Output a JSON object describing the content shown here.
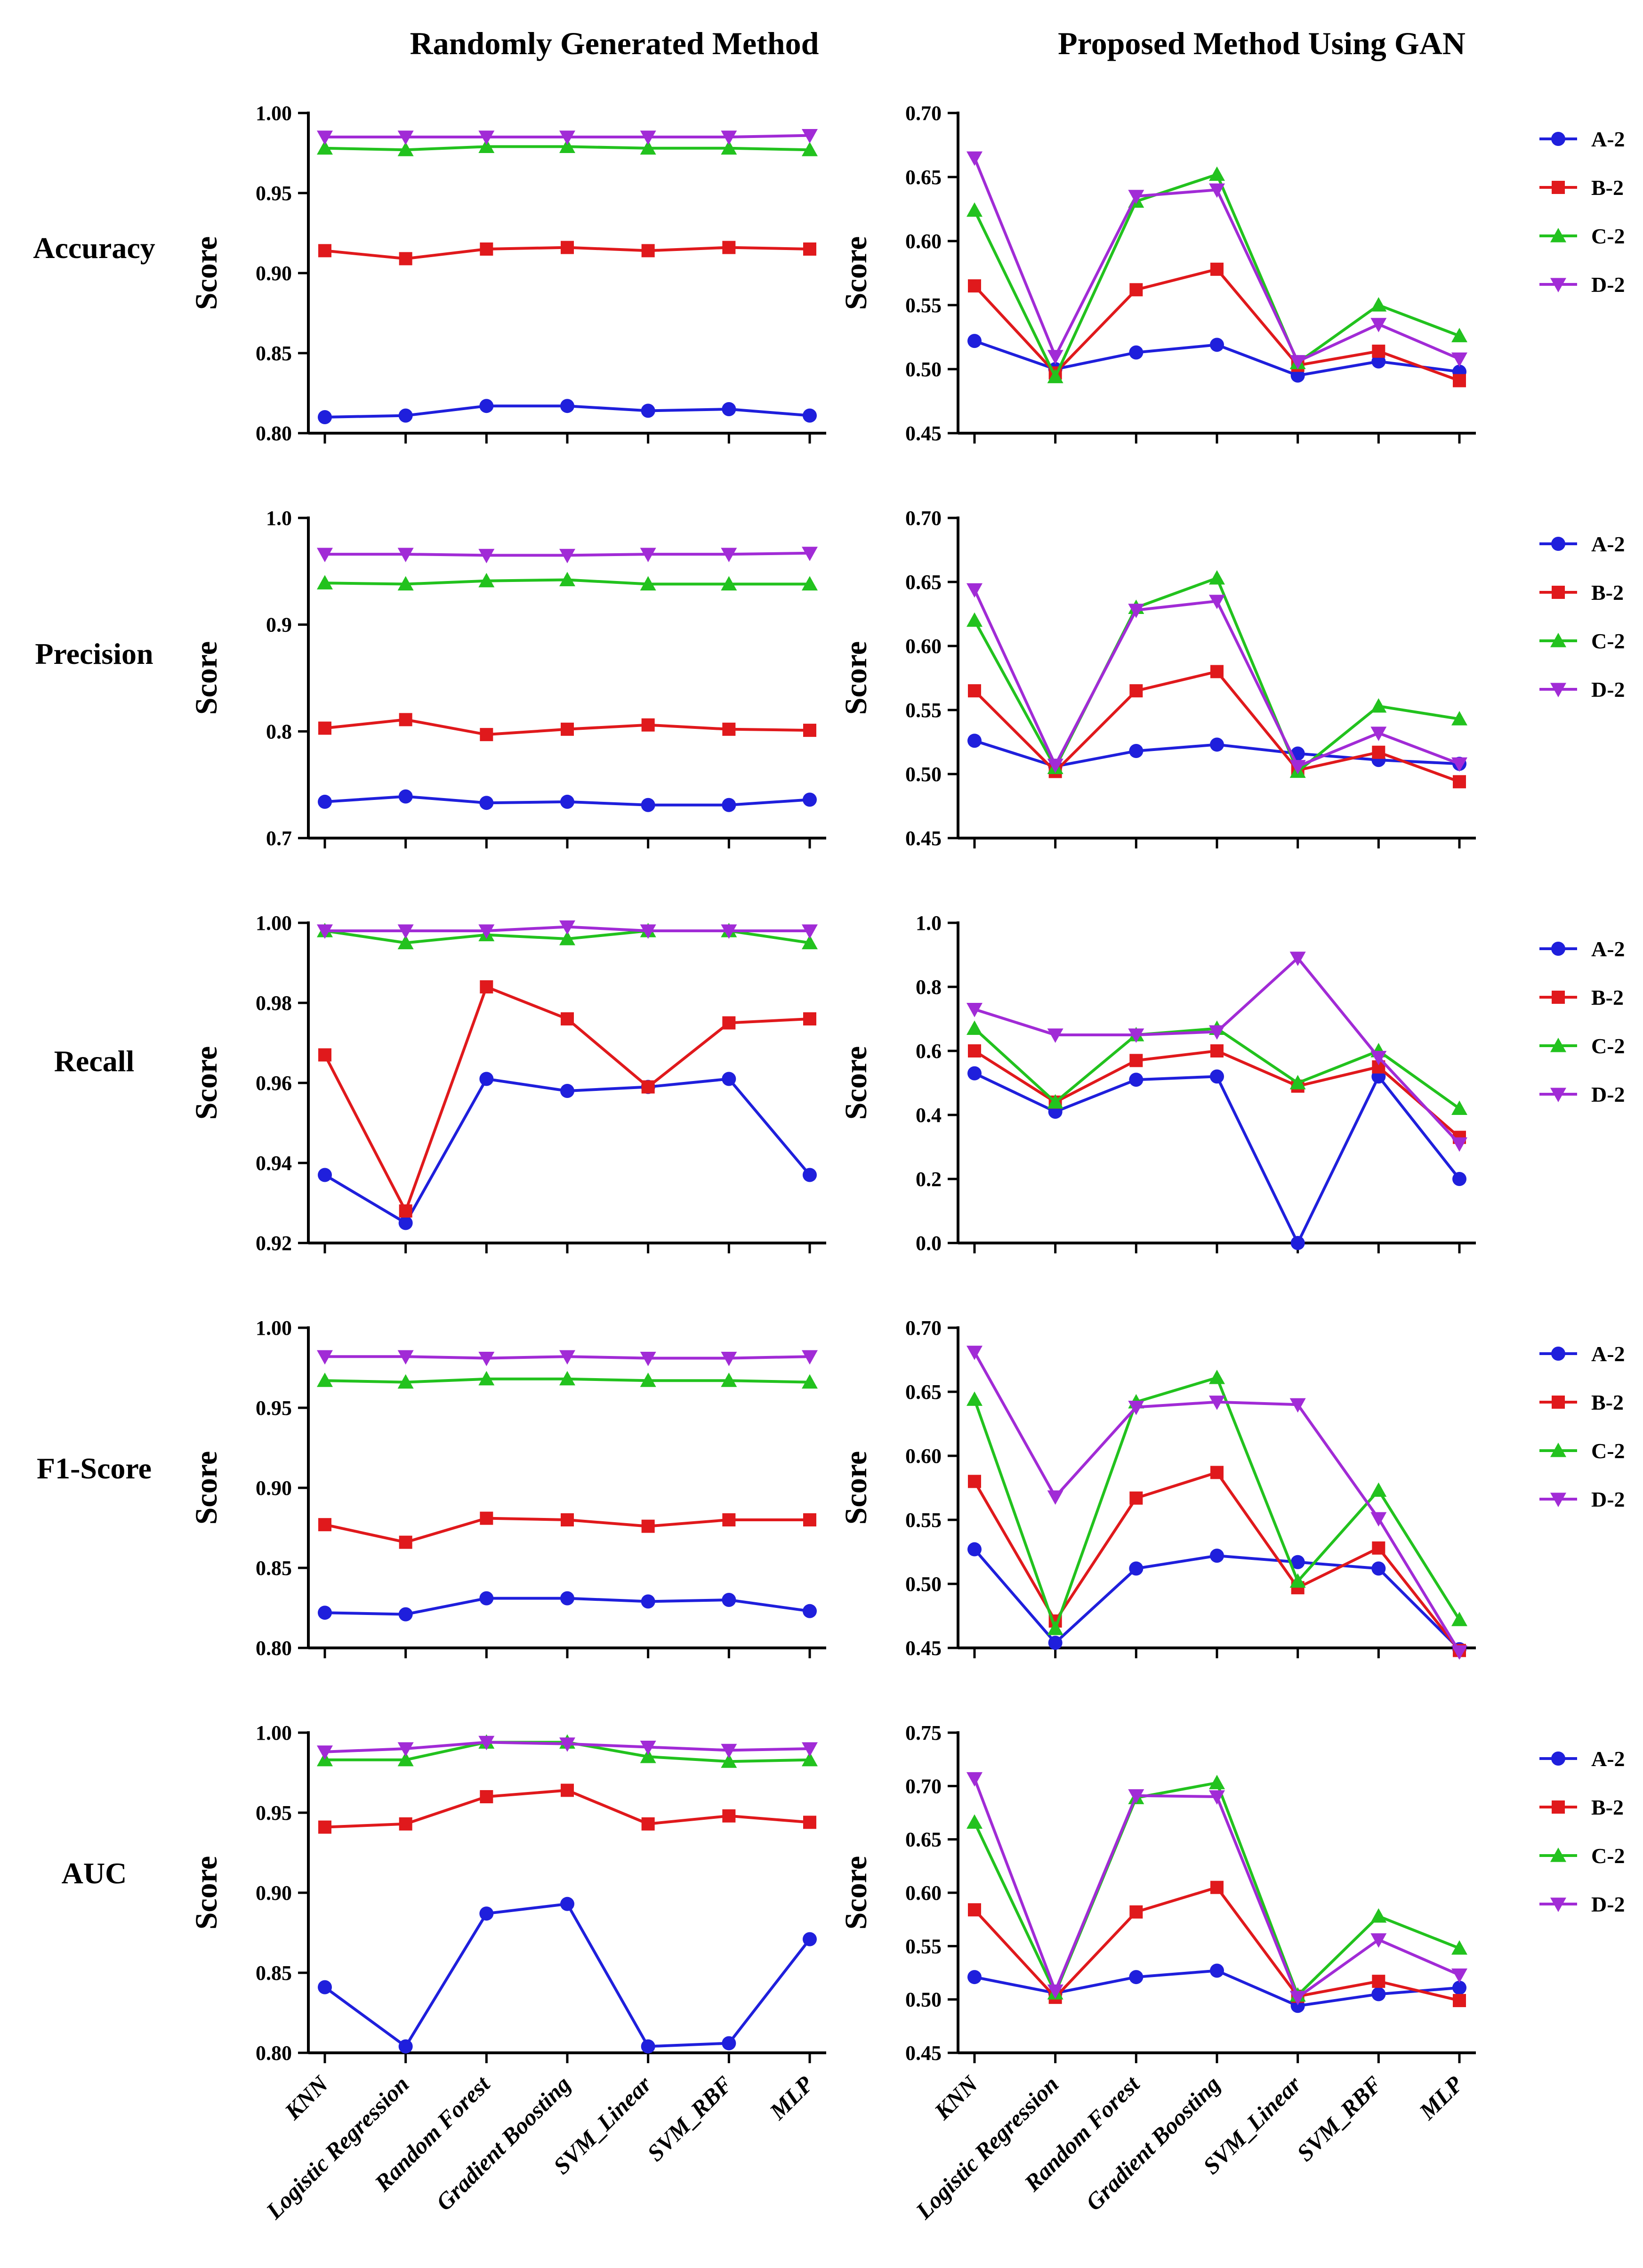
{
  "column_titles": [
    "Randomly Generated Method",
    "Proposed Method Using GAN"
  ],
  "row_titles": [
    "Accuracy",
    "Precision",
    "Recall",
    "F1-Score",
    "AUC"
  ],
  "series_styles": [
    {
      "name": "A-2",
      "color": "#1f1fdc",
      "marker": "circle"
    },
    {
      "name": "B-2",
      "color": "#e0191c",
      "marker": "square"
    },
    {
      "name": "C-2",
      "color": "#22c21e",
      "marker": "triangle-up"
    },
    {
      "name": "D-2",
      "color": "#a12bd6",
      "marker": "triangle-down"
    }
  ],
  "chart_data": [
    {
      "type": "line",
      "metric": "Accuracy",
      "method": "Randomly Generated Method",
      "ylabel": "Score",
      "categories": [
        "KNN",
        "Logistic Regression",
        "Random Forest",
        "Gradient Boosting",
        "SVM_Linear",
        "SVM_RBF",
        "MLP"
      ],
      "ylim": [
        0.8,
        1.0
      ],
      "yticks": [
        "0.80",
        "0.85",
        "0.90",
        "0.95",
        "1.00"
      ],
      "legend": false,
      "series": [
        {
          "name": "A-2",
          "values": [
            0.81,
            0.811,
            0.817,
            0.817,
            0.814,
            0.815,
            0.811
          ]
        },
        {
          "name": "B-2",
          "values": [
            0.914,
            0.909,
            0.915,
            0.916,
            0.914,
            0.916,
            0.915
          ]
        },
        {
          "name": "C-2",
          "values": [
            0.978,
            0.977,
            0.979,
            0.979,
            0.978,
            0.978,
            0.977
          ]
        },
        {
          "name": "D-2",
          "values": [
            0.985,
            0.985,
            0.985,
            0.985,
            0.985,
            0.985,
            0.986
          ]
        }
      ]
    },
    {
      "type": "line",
      "metric": "Accuracy",
      "method": "Proposed Method Using GAN",
      "ylabel": "Score",
      "categories": [
        "KNN",
        "Logistic Regression",
        "Random Forest",
        "Gradient Boosting",
        "SVM_Linear",
        "SVM_RBF",
        "MLP"
      ],
      "ylim": [
        0.45,
        0.7
      ],
      "yticks": [
        "0.45",
        "0.50",
        "0.55",
        "0.60",
        "0.65",
        "0.70"
      ],
      "legend": true,
      "series": [
        {
          "name": "A-2",
          "values": [
            0.522,
            0.5,
            0.513,
            0.519,
            0.495,
            0.506,
            0.498
          ]
        },
        {
          "name": "B-2",
          "values": [
            0.565,
            0.497,
            0.562,
            0.578,
            0.503,
            0.514,
            0.491
          ]
        },
        {
          "name": "C-2",
          "values": [
            0.624,
            0.494,
            0.631,
            0.652,
            0.505,
            0.55,
            0.526
          ]
        },
        {
          "name": "D-2",
          "values": [
            0.665,
            0.51,
            0.635,
            0.64,
            0.506,
            0.535,
            0.508
          ]
        }
      ]
    },
    {
      "type": "line",
      "metric": "Precision",
      "method": "Randomly Generated Method",
      "ylabel": "Score",
      "categories": [
        "KNN",
        "Logistic Regression",
        "Random Forest",
        "Gradient Boosting",
        "SVM_Linear",
        "SVM_RBF",
        "MLP"
      ],
      "ylim": [
        0.7,
        1.0
      ],
      "yticks": [
        "0.7",
        "0.8",
        "0.9",
        "1.0"
      ],
      "legend": false,
      "series": [
        {
          "name": "A-2",
          "values": [
            0.734,
            0.739,
            0.733,
            0.734,
            0.731,
            0.731,
            0.736
          ]
        },
        {
          "name": "B-2",
          "values": [
            0.803,
            0.811,
            0.797,
            0.802,
            0.806,
            0.802,
            0.801
          ]
        },
        {
          "name": "C-2",
          "values": [
            0.939,
            0.938,
            0.941,
            0.942,
            0.938,
            0.938,
            0.938
          ]
        },
        {
          "name": "D-2",
          "values": [
            0.966,
            0.966,
            0.965,
            0.965,
            0.966,
            0.966,
            0.967
          ]
        }
      ]
    },
    {
      "type": "line",
      "metric": "Precision",
      "method": "Proposed Method Using GAN",
      "ylabel": "Score",
      "categories": [
        "KNN",
        "Logistic Regression",
        "Random Forest",
        "Gradient Boosting",
        "SVM_Linear",
        "SVM_RBF",
        "MLP"
      ],
      "ylim": [
        0.45,
        0.7
      ],
      "yticks": [
        "0.45",
        "0.50",
        "0.55",
        "0.60",
        "0.65",
        "0.70"
      ],
      "legend": true,
      "series": [
        {
          "name": "A-2",
          "values": [
            0.526,
            0.506,
            0.518,
            0.523,
            0.516,
            0.511,
            0.508
          ]
        },
        {
          "name": "B-2",
          "values": [
            0.565,
            0.502,
            0.565,
            0.58,
            0.503,
            0.517,
            0.494
          ]
        },
        {
          "name": "C-2",
          "values": [
            0.62,
            0.505,
            0.63,
            0.653,
            0.502,
            0.553,
            0.543
          ]
        },
        {
          "name": "D-2",
          "values": [
            0.644,
            0.507,
            0.628,
            0.635,
            0.506,
            0.532,
            0.508
          ]
        }
      ]
    },
    {
      "type": "line",
      "metric": "Recall",
      "method": "Randomly Generated Method",
      "ylabel": "Score",
      "categories": [
        "KNN",
        "Logistic Regression",
        "Random Forest",
        "Gradient Boosting",
        "SVM_Linear",
        "SVM_RBF",
        "MLP"
      ],
      "ylim": [
        0.92,
        1.0
      ],
      "yticks": [
        "0.92",
        "0.94",
        "0.96",
        "0.98",
        "1.00"
      ],
      "legend": false,
      "series": [
        {
          "name": "A-2",
          "values": [
            0.937,
            0.925,
            0.961,
            0.958,
            0.959,
            0.961,
            0.937
          ]
        },
        {
          "name": "B-2",
          "values": [
            0.967,
            0.928,
            0.984,
            0.976,
            0.959,
            0.975,
            0.976
          ]
        },
        {
          "name": "C-2",
          "values": [
            0.998,
            0.995,
            0.997,
            0.996,
            0.998,
            0.998,
            0.995
          ]
        },
        {
          "name": "D-2",
          "values": [
            0.998,
            0.998,
            0.998,
            0.999,
            0.998,
            0.998,
            0.998
          ]
        }
      ]
    },
    {
      "type": "line",
      "metric": "Recall",
      "method": "Proposed Method Using GAN",
      "ylabel": "Score",
      "categories": [
        "KNN",
        "Logistic Regression",
        "Random Forest",
        "Gradient Boosting",
        "SVM_Linear",
        "SVM_RBF",
        "MLP"
      ],
      "ylim": [
        0.0,
        1.0
      ],
      "yticks": [
        "0.0",
        "0.2",
        "0.4",
        "0.6",
        "0.8",
        "1.0"
      ],
      "legend": true,
      "series": [
        {
          "name": "A-2",
          "values": [
            0.53,
            0.41,
            0.51,
            0.52,
            0.0,
            0.52,
            0.2
          ]
        },
        {
          "name": "B-2",
          "values": [
            0.6,
            0.44,
            0.57,
            0.6,
            0.49,
            0.55,
            0.33
          ]
        },
        {
          "name": "C-2",
          "values": [
            0.67,
            0.44,
            0.65,
            0.67,
            0.5,
            0.6,
            0.42
          ]
        },
        {
          "name": "D-2",
          "values": [
            0.73,
            0.65,
            0.65,
            0.66,
            0.89,
            0.58,
            0.31
          ]
        }
      ]
    },
    {
      "type": "line",
      "metric": "F1-Score",
      "method": "Randomly Generated Method",
      "ylabel": "Score",
      "categories": [
        "KNN",
        "Logistic Regression",
        "Random Forest",
        "Gradient Boosting",
        "SVM_Linear",
        "SVM_RBF",
        "MLP"
      ],
      "ylim": [
        0.8,
        1.0
      ],
      "yticks": [
        "0.80",
        "0.85",
        "0.90",
        "0.95",
        "1.00"
      ],
      "legend": false,
      "series": [
        {
          "name": "A-2",
          "values": [
            0.822,
            0.821,
            0.831,
            0.831,
            0.829,
            0.83,
            0.823
          ]
        },
        {
          "name": "B-2",
          "values": [
            0.877,
            0.866,
            0.881,
            0.88,
            0.876,
            0.88,
            0.88
          ]
        },
        {
          "name": "C-2",
          "values": [
            0.967,
            0.966,
            0.968,
            0.968,
            0.967,
            0.967,
            0.966
          ]
        },
        {
          "name": "D-2",
          "values": [
            0.982,
            0.982,
            0.981,
            0.982,
            0.981,
            0.981,
            0.982
          ]
        }
      ]
    },
    {
      "type": "line",
      "metric": "F1-Score",
      "method": "Proposed Method Using GAN",
      "ylabel": "Score",
      "categories": [
        "KNN",
        "Logistic Regression",
        "Random Forest",
        "Gradient Boosting",
        "SVM_Linear",
        "SVM_RBF",
        "MLP"
      ],
      "ylim": [
        0.45,
        0.7
      ],
      "yticks": [
        "0.45",
        "0.50",
        "0.55",
        "0.60",
        "0.65",
        "0.70"
      ],
      "legend": true,
      "series": [
        {
          "name": "A-2",
          "values": [
            0.527,
            0.454,
            0.512,
            0.522,
            0.517,
            0.512,
            0.449
          ]
        },
        {
          "name": "B-2",
          "values": [
            0.58,
            0.471,
            0.567,
            0.587,
            0.497,
            0.528,
            0.448
          ]
        },
        {
          "name": "C-2",
          "values": [
            0.644,
            0.465,
            0.642,
            0.661,
            0.502,
            0.573,
            0.472
          ]
        },
        {
          "name": "D-2",
          "values": [
            0.681,
            0.568,
            0.638,
            0.642,
            0.64,
            0.551,
            0.447
          ]
        }
      ]
    },
    {
      "type": "line",
      "metric": "AUC",
      "method": "Randomly Generated Method",
      "ylabel": "Score",
      "categories": [
        "KNN",
        "Logistic Regression",
        "Random Forest",
        "Gradient Boosting",
        "SVM_Linear",
        "SVM_RBF",
        "MLP"
      ],
      "ylim": [
        0.8,
        1.0
      ],
      "yticks": [
        "0.80",
        "0.85",
        "0.90",
        "0.95",
        "1.00"
      ],
      "legend": false,
      "series": [
        {
          "name": "A-2",
          "values": [
            0.841,
            0.804,
            0.887,
            0.893,
            0.804,
            0.806,
            0.871
          ]
        },
        {
          "name": "B-2",
          "values": [
            0.941,
            0.943,
            0.96,
            0.964,
            0.943,
            0.948,
            0.944
          ]
        },
        {
          "name": "C-2",
          "values": [
            0.983,
            0.983,
            0.994,
            0.994,
            0.985,
            0.982,
            0.983
          ]
        },
        {
          "name": "D-2",
          "values": [
            0.988,
            0.99,
            0.994,
            0.993,
            0.991,
            0.989,
            0.99
          ]
        }
      ]
    },
    {
      "type": "line",
      "metric": "AUC",
      "method": "Proposed Method Using GAN",
      "ylabel": "Score",
      "categories": [
        "KNN",
        "Logistic Regression",
        "Random Forest",
        "Gradient Boosting",
        "SVM_Linear",
        "SVM_RBF",
        "MLP"
      ],
      "ylim": [
        0.45,
        0.75
      ],
      "yticks": [
        "0.45",
        "0.50",
        "0.55",
        "0.60",
        "0.65",
        "0.70",
        "0.75"
      ],
      "legend": true,
      "series": [
        {
          "name": "A-2",
          "values": [
            0.521,
            0.506,
            0.521,
            0.527,
            0.494,
            0.505,
            0.511
          ]
        },
        {
          "name": "B-2",
          "values": [
            0.584,
            0.502,
            0.582,
            0.605,
            0.503,
            0.517,
            0.499
          ]
        },
        {
          "name": "C-2",
          "values": [
            0.666,
            0.506,
            0.689,
            0.703,
            0.504,
            0.578,
            0.548
          ]
        },
        {
          "name": "D-2",
          "values": [
            0.707,
            0.508,
            0.691,
            0.69,
            0.502,
            0.556,
            0.523
          ]
        }
      ]
    }
  ]
}
